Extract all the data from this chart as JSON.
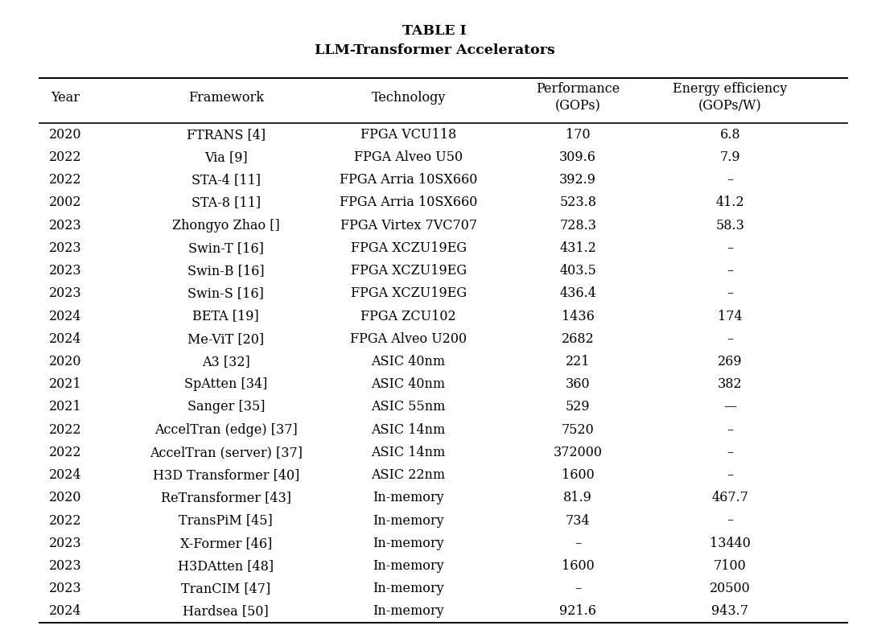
{
  "title_line1": "TABLE I",
  "title_line2": "LLM-Transformer Accelerators",
  "col_headers": [
    "Year",
    "Framework",
    "Technology",
    "Performance\n(GOPs)",
    "Energy efficiency\n(GOPs/W)"
  ],
  "rows": [
    [
      "2020",
      "FTRANS [4]",
      "FPGA VCU118",
      "170",
      "6.8"
    ],
    [
      "2022",
      "Via [9]",
      "FPGA Alveo U50",
      "309.6",
      "7.9"
    ],
    [
      "2022",
      "STA-4 [11]",
      "FPGA Arria 10SX660",
      "392.9",
      "–"
    ],
    [
      "2002",
      "STA-8 [11]",
      "FPGA Arria 10SX660",
      "523.8",
      "41.2"
    ],
    [
      "2023",
      "Zhongyo Zhao []",
      "FPGA Virtex 7VC707",
      "728.3",
      "58.3"
    ],
    [
      "2023",
      "Swin-T [16]",
      "FPGA XCZU19EG",
      "431.2",
      "–"
    ],
    [
      "2023",
      "Swin-B [16]",
      "FPGA XCZU19EG",
      "403.5",
      "–"
    ],
    [
      "2023",
      "Swin-S [16]",
      "FPGA XCZU19EG",
      "436.4",
      "–"
    ],
    [
      "2024",
      "BETA [19]",
      "FPGA ZCU102",
      "1436",
      "174"
    ],
    [
      "2024",
      "Me-ViT [20]",
      "FPGA Alveo U200",
      "2682",
      "–"
    ],
    [
      "2020",
      "A3 [32]",
      "ASIC 40nm",
      "221",
      "269"
    ],
    [
      "2021",
      "SpAtten [34]",
      "ASIC 40nm",
      "360",
      "382"
    ],
    [
      "2021",
      "Sanger [35]",
      "ASIC 55nm",
      "529",
      "—"
    ],
    [
      "2022",
      "AccelTran (edge) [37]",
      "ASIC 14nm",
      "7520",
      "–"
    ],
    [
      "2022",
      "AccelTran (server) [37]",
      "ASIC 14nm",
      "372000",
      "–"
    ],
    [
      "2024",
      "H3D Transformer [40]",
      "ASIC 22nm",
      "1600",
      "–"
    ],
    [
      "2020",
      "ReTransformer [43]",
      "In-memory",
      "81.9",
      "467.7"
    ],
    [
      "2022",
      "TransPiM [45]",
      "In-memory",
      "734",
      "–"
    ],
    [
      "2023",
      "X-Former [46]",
      "In-memory",
      "–",
      "13440"
    ],
    [
      "2023",
      "H3DAtten [48]",
      "In-memory",
      "1600",
      "7100"
    ],
    [
      "2023",
      "TranCIM [47]",
      "In-memory",
      "–",
      "20500"
    ],
    [
      "2024",
      "Hardsea [50]",
      "In-memory",
      "921.6",
      "943.7"
    ]
  ],
  "background_color": "#ffffff",
  "text_color": "#000000",
  "title_fontsize": 12.5,
  "header_fontsize": 11.5,
  "cell_fontsize": 11.5
}
